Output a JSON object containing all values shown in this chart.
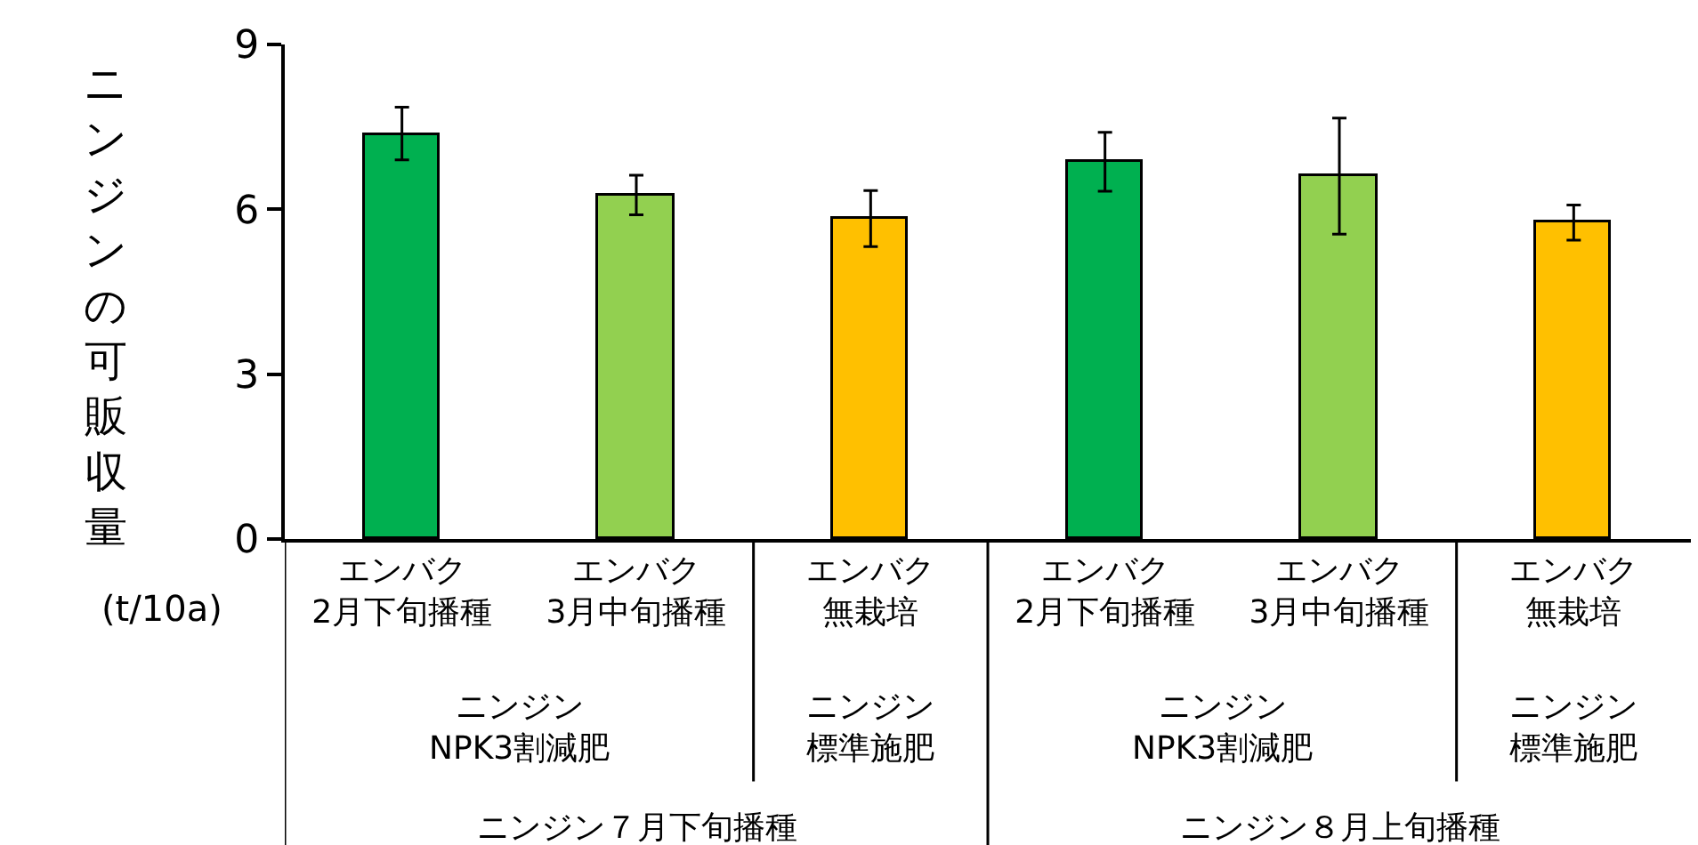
{
  "chart_data": {
    "type": "bar",
    "ylabel": "ニンジンの可販収量\n(t/10a)",
    "categories": [
      "エンバク\n2月下旬播種",
      "エンバク\n3月中旬播種",
      "エンバク無栽培",
      "エンバク\n2月下旬播種",
      "エンバク\n3月中旬播種",
      "エンバク無栽培"
    ],
    "values": [
      7.36,
      6.26,
      5.82,
      6.85,
      6.59,
      5.75
    ],
    "errors": [
      [
        6.9,
        7.86
      ],
      [
        5.9,
        6.62
      ],
      [
        5.32,
        6.34
      ],
      [
        6.33,
        7.4
      ],
      [
        5.55,
        7.66
      ],
      [
        5.44,
        6.08
      ]
    ],
    "colors": [
      "#00b050",
      "#92d050",
      "#ffc000",
      "#00b050",
      "#92d050",
      "#ffc000"
    ],
    "annotations": [
      "ニンジン\nNPK3割減肥",
      "ニンジン標準施肥",
      "ニンジン\nNPK3割減肥",
      "ニンジン標準施肥",
      "ニンジン７月下旬播種",
      "ニンジン８月上旬播種"
    ],
    "ylim": [
      0,
      9
    ],
    "yticks": [
      0,
      3,
      6,
      9
    ]
  }
}
